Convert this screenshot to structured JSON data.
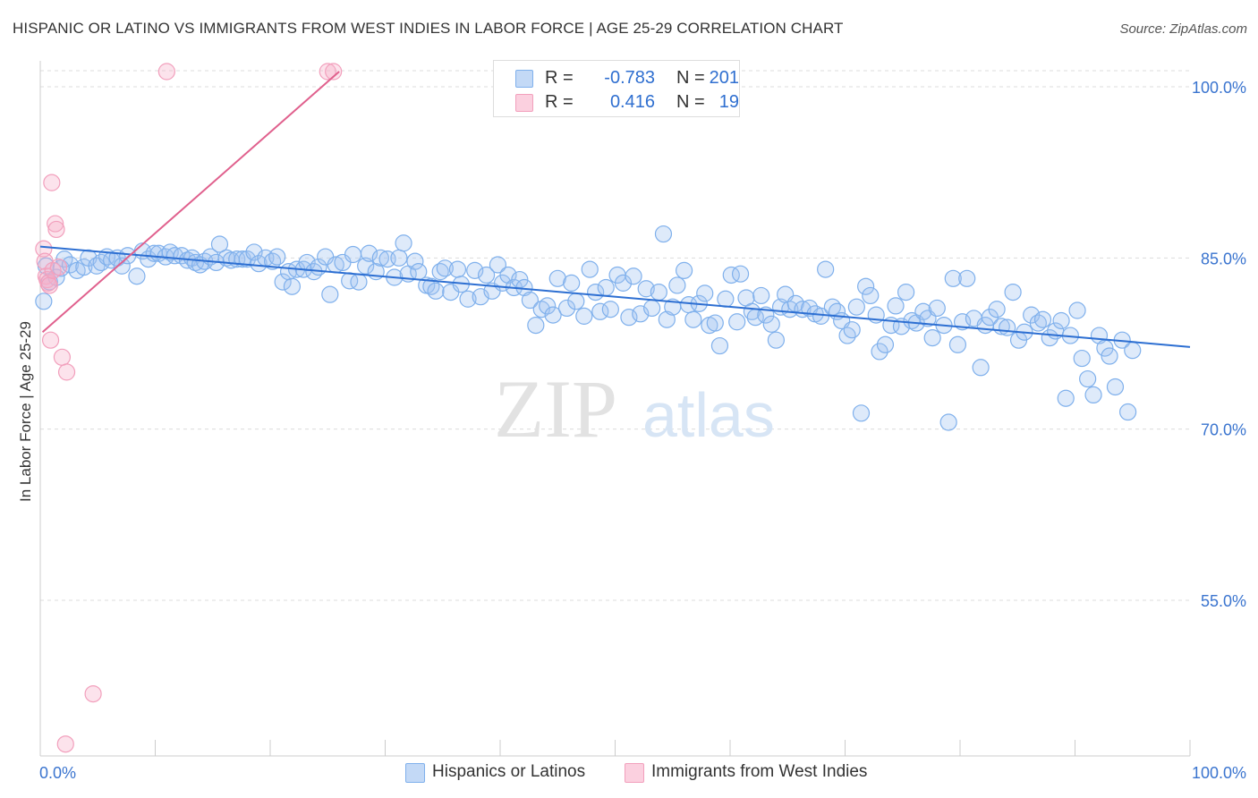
{
  "title": "HISPANIC OR LATINO VS IMMIGRANTS FROM WEST INDIES IN LABOR FORCE | AGE 25-29 CORRELATION CHART",
  "source": "Source: ZipAtlas.com",
  "watermark": {
    "zip": "ZIP",
    "atlas": "atlas"
  },
  "legend_box": {
    "rows": [
      {
        "r_label": "R =",
        "r_value": "-0.783",
        "n_label": "N =",
        "n_value": "201",
        "color": "#7fb0ec"
      },
      {
        "r_label": "R =",
        "r_value": "0.416",
        "n_label": "N =",
        "n_value": "19",
        "color": "#f29fbc"
      }
    ]
  },
  "bottom_legend": [
    {
      "label": "Hispanics or Latinos",
      "color": "#7fb0ec"
    },
    {
      "label": "Immigrants from West Indies",
      "color": "#f29fbc"
    }
  ],
  "chart_data": {
    "type": "scatter",
    "title": "HISPANIC OR LATINO VS IMMIGRANTS FROM WEST INDIES IN LABOR FORCE | AGE 25-29 CORRELATION CHART",
    "xlabel": "",
    "ylabel": "In Labor Force | Age 25-29",
    "xlim": [
      0,
      100
    ],
    "ylim": [
      40,
      102
    ],
    "x_tick_labels": [
      {
        "value": 0,
        "label": "0.0%"
      },
      {
        "value": 100,
        "label": "100.0%"
      }
    ],
    "y_ticks": [
      {
        "value": 100,
        "label": "100.0%"
      },
      {
        "value": 85,
        "label": "85.0%"
      },
      {
        "value": 70,
        "label": "70.0%"
      },
      {
        "value": 55,
        "label": "55.0%"
      }
    ],
    "grid": "horizontal dashed",
    "legend_position": "bottom",
    "series": [
      {
        "name": "Hispanics or Latinos",
        "color": "#7fb0ec",
        "line_color": "#2d6fd2",
        "trendline": {
          "x": [
            0,
            100
          ],
          "y": [
            86.0,
            77.2
          ]
        },
        "points": [
          [
            0.3,
            81.2
          ],
          [
            0.5,
            84.3
          ],
          [
            0.8,
            82.9
          ],
          [
            1.4,
            83.3
          ],
          [
            1.8,
            84.1
          ],
          [
            2.1,
            84.9
          ],
          [
            2.6,
            84.4
          ],
          [
            3.2,
            83.9
          ],
          [
            3.8,
            84.2
          ],
          [
            4.2,
            85.0
          ],
          [
            4.9,
            84.3
          ],
          [
            5.3,
            84.6
          ],
          [
            5.8,
            85.1
          ],
          [
            6.2,
            84.8
          ],
          [
            6.7,
            85.0
          ],
          [
            7.1,
            84.3
          ],
          [
            7.6,
            85.2
          ],
          [
            8.4,
            83.4
          ],
          [
            8.9,
            85.6
          ],
          [
            9.4,
            84.9
          ],
          [
            9.9,
            85.4
          ],
          [
            10.3,
            85.4
          ],
          [
            10.9,
            85.1
          ],
          [
            11.3,
            85.5
          ],
          [
            11.7,
            85.2
          ],
          [
            12.3,
            85.2
          ],
          [
            12.8,
            84.8
          ],
          [
            13.2,
            85.0
          ],
          [
            13.5,
            84.6
          ],
          [
            13.9,
            84.4
          ],
          [
            14.3,
            84.7
          ],
          [
            14.8,
            85.1
          ],
          [
            15.3,
            84.6
          ],
          [
            15.6,
            86.2
          ],
          [
            16.2,
            85.0
          ],
          [
            16.6,
            84.8
          ],
          [
            17.1,
            84.9
          ],
          [
            17.6,
            84.9
          ],
          [
            18.0,
            84.9
          ],
          [
            18.6,
            85.5
          ],
          [
            19.0,
            84.5
          ],
          [
            19.6,
            85.0
          ],
          [
            20.2,
            84.7
          ],
          [
            20.6,
            85.1
          ],
          [
            21.1,
            82.9
          ],
          [
            21.6,
            83.8
          ],
          [
            21.9,
            82.5
          ],
          [
            22.3,
            84.0
          ],
          [
            22.9,
            84.0
          ],
          [
            23.2,
            84.6
          ],
          [
            23.8,
            83.8
          ],
          [
            24.2,
            84.2
          ],
          [
            24.8,
            85.1
          ],
          [
            25.2,
            81.8
          ],
          [
            25.7,
            84.4
          ],
          [
            26.3,
            84.6
          ],
          [
            26.9,
            83.0
          ],
          [
            27.2,
            85.3
          ],
          [
            27.7,
            82.9
          ],
          [
            28.3,
            84.3
          ],
          [
            28.6,
            85.4
          ],
          [
            29.2,
            83.8
          ],
          [
            29.6,
            85.0
          ],
          [
            30.2,
            84.9
          ],
          [
            30.8,
            83.3
          ],
          [
            31.2,
            85.0
          ],
          [
            31.6,
            86.3
          ],
          [
            32.0,
            83.6
          ],
          [
            32.6,
            84.7
          ],
          [
            32.9,
            83.8
          ],
          [
            33.6,
            82.6
          ],
          [
            34.0,
            82.5
          ],
          [
            34.4,
            82.1
          ],
          [
            34.8,
            83.8
          ],
          [
            35.2,
            84.1
          ],
          [
            35.7,
            82.0
          ],
          [
            36.3,
            84.0
          ],
          [
            36.6,
            82.7
          ],
          [
            37.2,
            81.4
          ],
          [
            37.8,
            83.9
          ],
          [
            38.3,
            81.6
          ],
          [
            38.8,
            83.5
          ],
          [
            39.3,
            82.1
          ],
          [
            39.8,
            84.4
          ],
          [
            40.2,
            82.8
          ],
          [
            40.7,
            83.5
          ],
          [
            41.2,
            82.4
          ],
          [
            41.7,
            83.1
          ],
          [
            42.1,
            82.4
          ],
          [
            42.6,
            81.3
          ],
          [
            43.1,
            79.1
          ],
          [
            43.6,
            80.5
          ],
          [
            44.1,
            80.8
          ],
          [
            44.6,
            80.0
          ],
          [
            45.0,
            83.2
          ],
          [
            45.8,
            80.6
          ],
          [
            46.2,
            82.8
          ],
          [
            46.6,
            81.2
          ],
          [
            47.3,
            79.9
          ],
          [
            47.8,
            84.0
          ],
          [
            48.3,
            82.0
          ],
          [
            48.7,
            80.3
          ],
          [
            49.2,
            82.4
          ],
          [
            49.6,
            80.5
          ],
          [
            50.2,
            83.5
          ],
          [
            50.7,
            82.8
          ],
          [
            51.2,
            79.8
          ],
          [
            51.6,
            83.4
          ],
          [
            52.2,
            80.1
          ],
          [
            52.7,
            82.3
          ],
          [
            53.2,
            80.6
          ],
          [
            53.8,
            82.0
          ],
          [
            54.2,
            87.1
          ],
          [
            54.5,
            79.6
          ],
          [
            55.0,
            80.7
          ],
          [
            55.4,
            82.6
          ],
          [
            56.0,
            83.9
          ],
          [
            56.4,
            80.9
          ],
          [
            56.8,
            79.6
          ],
          [
            57.3,
            81.0
          ],
          [
            57.8,
            81.9
          ],
          [
            58.2,
            79.1
          ],
          [
            58.7,
            79.3
          ],
          [
            59.1,
            77.3
          ],
          [
            59.6,
            81.4
          ],
          [
            60.1,
            83.5
          ],
          [
            60.6,
            79.4
          ],
          [
            60.9,
            83.6
          ],
          [
            61.4,
            81.5
          ],
          [
            61.9,
            80.3
          ],
          [
            62.2,
            79.8
          ],
          [
            62.7,
            81.7
          ],
          [
            63.1,
            80.0
          ],
          [
            63.6,
            79.2
          ],
          [
            64.0,
            77.8
          ],
          [
            64.4,
            80.7
          ],
          [
            64.8,
            81.8
          ],
          [
            65.2,
            80.5
          ],
          [
            65.7,
            81.0
          ],
          [
            66.3,
            80.5
          ],
          [
            66.9,
            80.6
          ],
          [
            67.4,
            80.1
          ],
          [
            67.9,
            79.9
          ],
          [
            68.3,
            84.0
          ],
          [
            68.9,
            80.7
          ],
          [
            69.3,
            80.3
          ],
          [
            69.7,
            79.5
          ],
          [
            70.2,
            78.2
          ],
          [
            70.6,
            78.7
          ],
          [
            71.0,
            80.7
          ],
          [
            71.4,
            71.4
          ],
          [
            71.8,
            82.5
          ],
          [
            72.2,
            81.7
          ],
          [
            72.7,
            80.0
          ],
          [
            73.0,
            76.8
          ],
          [
            73.5,
            77.4
          ],
          [
            74.0,
            79.1
          ],
          [
            74.4,
            80.8
          ],
          [
            74.9,
            79.0
          ],
          [
            75.3,
            82.0
          ],
          [
            75.8,
            79.5
          ],
          [
            76.2,
            79.3
          ],
          [
            76.8,
            80.3
          ],
          [
            77.2,
            79.7
          ],
          [
            77.6,
            78.0
          ],
          [
            78.0,
            80.6
          ],
          [
            78.6,
            79.1
          ],
          [
            79.0,
            70.6
          ],
          [
            79.4,
            83.2
          ],
          [
            79.8,
            77.4
          ],
          [
            80.2,
            79.4
          ],
          [
            80.6,
            83.2
          ],
          [
            81.2,
            79.7
          ],
          [
            81.8,
            75.4
          ],
          [
            82.2,
            79.1
          ],
          [
            82.6,
            79.8
          ],
          [
            83.2,
            80.5
          ],
          [
            83.6,
            79.0
          ],
          [
            84.1,
            78.9
          ],
          [
            84.6,
            82.0
          ],
          [
            85.1,
            77.8
          ],
          [
            85.6,
            78.5
          ],
          [
            86.2,
            80.0
          ],
          [
            86.8,
            79.3
          ],
          [
            87.2,
            79.6
          ],
          [
            87.8,
            78.0
          ],
          [
            88.3,
            78.6
          ],
          [
            88.8,
            79.5
          ],
          [
            89.2,
            72.7
          ],
          [
            89.6,
            78.2
          ],
          [
            90.2,
            80.4
          ],
          [
            90.6,
            76.2
          ],
          [
            91.1,
            74.4
          ],
          [
            91.6,
            73.0
          ],
          [
            92.1,
            78.2
          ],
          [
            92.6,
            77.1
          ],
          [
            93.0,
            76.4
          ],
          [
            93.5,
            73.7
          ],
          [
            94.1,
            77.8
          ],
          [
            94.6,
            71.5
          ],
          [
            95.0,
            76.9
          ]
        ]
      },
      {
        "name": "Immigrants from West Indies",
        "color": "#f29fbc",
        "line_color": "#e0608d",
        "trendline": {
          "x": [
            0.2,
            26.0
          ],
          "y": [
            78.5,
            100.0
          ]
        },
        "points": [
          [
            0.3,
            85.8
          ],
          [
            0.4,
            84.7
          ],
          [
            0.5,
            83.4
          ],
          [
            0.6,
            83.1
          ],
          [
            0.7,
            82.8
          ],
          [
            0.8,
            82.6
          ],
          [
            0.9,
            77.8
          ],
          [
            1.0,
            91.6
          ],
          [
            1.1,
            83.9
          ],
          [
            1.3,
            88.0
          ],
          [
            1.4,
            87.5
          ],
          [
            1.6,
            84.2
          ],
          [
            1.9,
            76.3
          ],
          [
            2.3,
            75.0
          ],
          [
            4.6,
            46.8
          ],
          [
            2.2,
            42.4
          ],
          [
            11.0,
            102.0
          ],
          [
            25.0,
            102.0
          ],
          [
            25.5,
            102.0
          ]
        ]
      }
    ]
  }
}
